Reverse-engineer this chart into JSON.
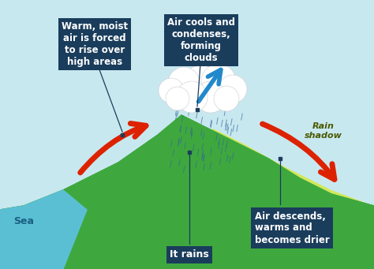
{
  "bg_color": "#c8e8f0",
  "sea_color": "#5bbfd4",
  "mountain_color": "#3ea83e",
  "rain_shadow_color": "#d4e84a",
  "rain_shadow_hatch": "////",
  "label_box_color": "#1a3d5c",
  "label_text_color": "#ffffff",
  "sea_label": "Sea",
  "sea_label_color": "#1a6080",
  "label1_text": "Warm, moist\nair is forced\nto rise over\nhigh areas",
  "label2_text": "Air cools and\ncondenses,\nforming\nclouds",
  "label3_text": "It rains",
  "label4_text": "Air descends,\nwarms and\nbecomes drier",
  "label5_text": "Rain\nshadow",
  "figsize": [
    4.74,
    3.41
  ],
  "dpi": 100
}
